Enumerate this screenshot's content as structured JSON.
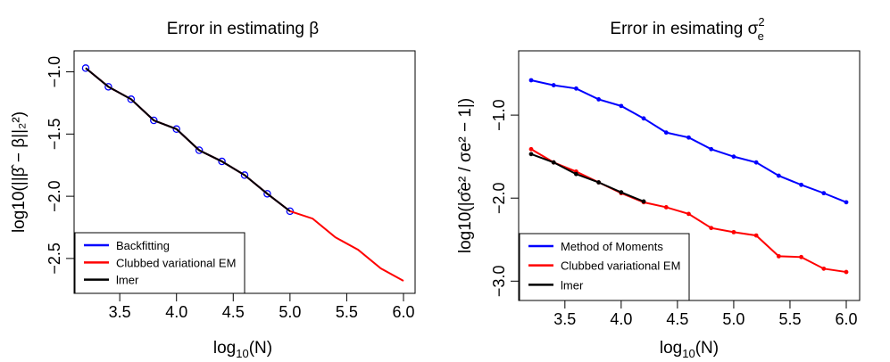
{
  "chart_data": [
    {
      "type": "line",
      "title_text": "Error in estimating ",
      "title_symbol": "β",
      "xlabel": "log",
      "xlabel_sub": "10",
      "xlabel_tail": "(N)",
      "ylabel": "log10(||β̂ − β||₂²)",
      "xlim": [
        3.2,
        6.0
      ],
      "ylim": [
        -2.68,
        -0.96
      ],
      "xticks": [
        "3.5",
        "4.0",
        "4.5",
        "5.0",
        "5.5",
        "6.0"
      ],
      "yticks": [
        "−1.0",
        "−1.5",
        "−2.0",
        "−2.5"
      ],
      "legend": "bottom-left",
      "x": [
        3.2,
        3.4,
        3.6,
        3.8,
        4.0,
        4.2,
        4.4,
        4.6,
        4.8,
        5.0,
        5.2,
        5.4,
        5.6,
        5.8,
        6.0
      ],
      "series": [
        {
          "name": "Backfitting",
          "color": "#0000ff",
          "marker": "circle",
          "values": [
            -0.97,
            -1.12,
            -1.22,
            -1.39,
            -1.46,
            -1.63,
            -1.72,
            -1.83,
            -1.98,
            -2.12,
            null,
            null,
            null,
            null,
            null
          ]
        },
        {
          "name": "Clubbed variational EM",
          "color": "#ff0000",
          "marker": "none",
          "values": [
            -0.97,
            -1.12,
            -1.22,
            -1.39,
            -1.46,
            -1.63,
            -1.72,
            -1.83,
            -1.98,
            -2.12,
            -2.18,
            -2.33,
            -2.43,
            -2.58,
            -2.68
          ]
        },
        {
          "name": "lmer",
          "color": "#000000",
          "marker": "none",
          "values": [
            -0.97,
            -1.12,
            -1.22,
            -1.39,
            -1.46,
            -1.63,
            -1.72,
            -1.83,
            -1.98,
            -2.12,
            null,
            null,
            null,
            null,
            null
          ]
        }
      ]
    },
    {
      "type": "line",
      "title_text": "Error in esimating ",
      "title_symbol": "σ",
      "title_sup": "2",
      "title_sub": "e",
      "xlabel": "log",
      "xlabel_sub": "10",
      "xlabel_tail": "(N)",
      "ylabel": "log10(|σ̂e² / σe² − 1|)",
      "xlim": [
        3.2,
        6.0
      ],
      "ylim": [
        -2.9,
        -0.58
      ],
      "xticks": [
        "3.5",
        "4.0",
        "4.5",
        "5.0",
        "5.5",
        "6.0"
      ],
      "yticks": [
        "−1.0",
        "−2.0",
        "−3.0"
      ],
      "legend": "bottom-left",
      "x": [
        3.2,
        3.4,
        3.6,
        3.8,
        4.0,
        4.2,
        4.4,
        4.6,
        4.8,
        5.0,
        5.2,
        5.4,
        5.6,
        5.8,
        6.0
      ],
      "series": [
        {
          "name": "Method of Moments",
          "color": "#0000ff",
          "marker": "dot",
          "values": [
            -0.58,
            -0.64,
            -0.68,
            -0.81,
            -0.89,
            -1.04,
            -1.21,
            -1.27,
            -1.41,
            -1.5,
            -1.57,
            -1.73,
            -1.84,
            -1.94,
            -2.05
          ]
        },
        {
          "name": "Clubbed variational EM",
          "color": "#ff0000",
          "marker": "dot",
          "values": [
            -1.41,
            -1.57,
            -1.68,
            -1.81,
            -1.94,
            -2.05,
            -2.11,
            -2.19,
            -2.36,
            -2.41,
            -2.45,
            -2.7,
            -2.71,
            -2.85,
            -2.89
          ]
        },
        {
          "name": "lmer",
          "color": "#000000",
          "marker": "dot",
          "values": [
            -1.47,
            -1.57,
            -1.71,
            -1.81,
            -1.93,
            -2.04,
            null,
            null,
            null,
            null,
            null,
            null,
            null,
            null,
            null
          ]
        }
      ]
    }
  ]
}
